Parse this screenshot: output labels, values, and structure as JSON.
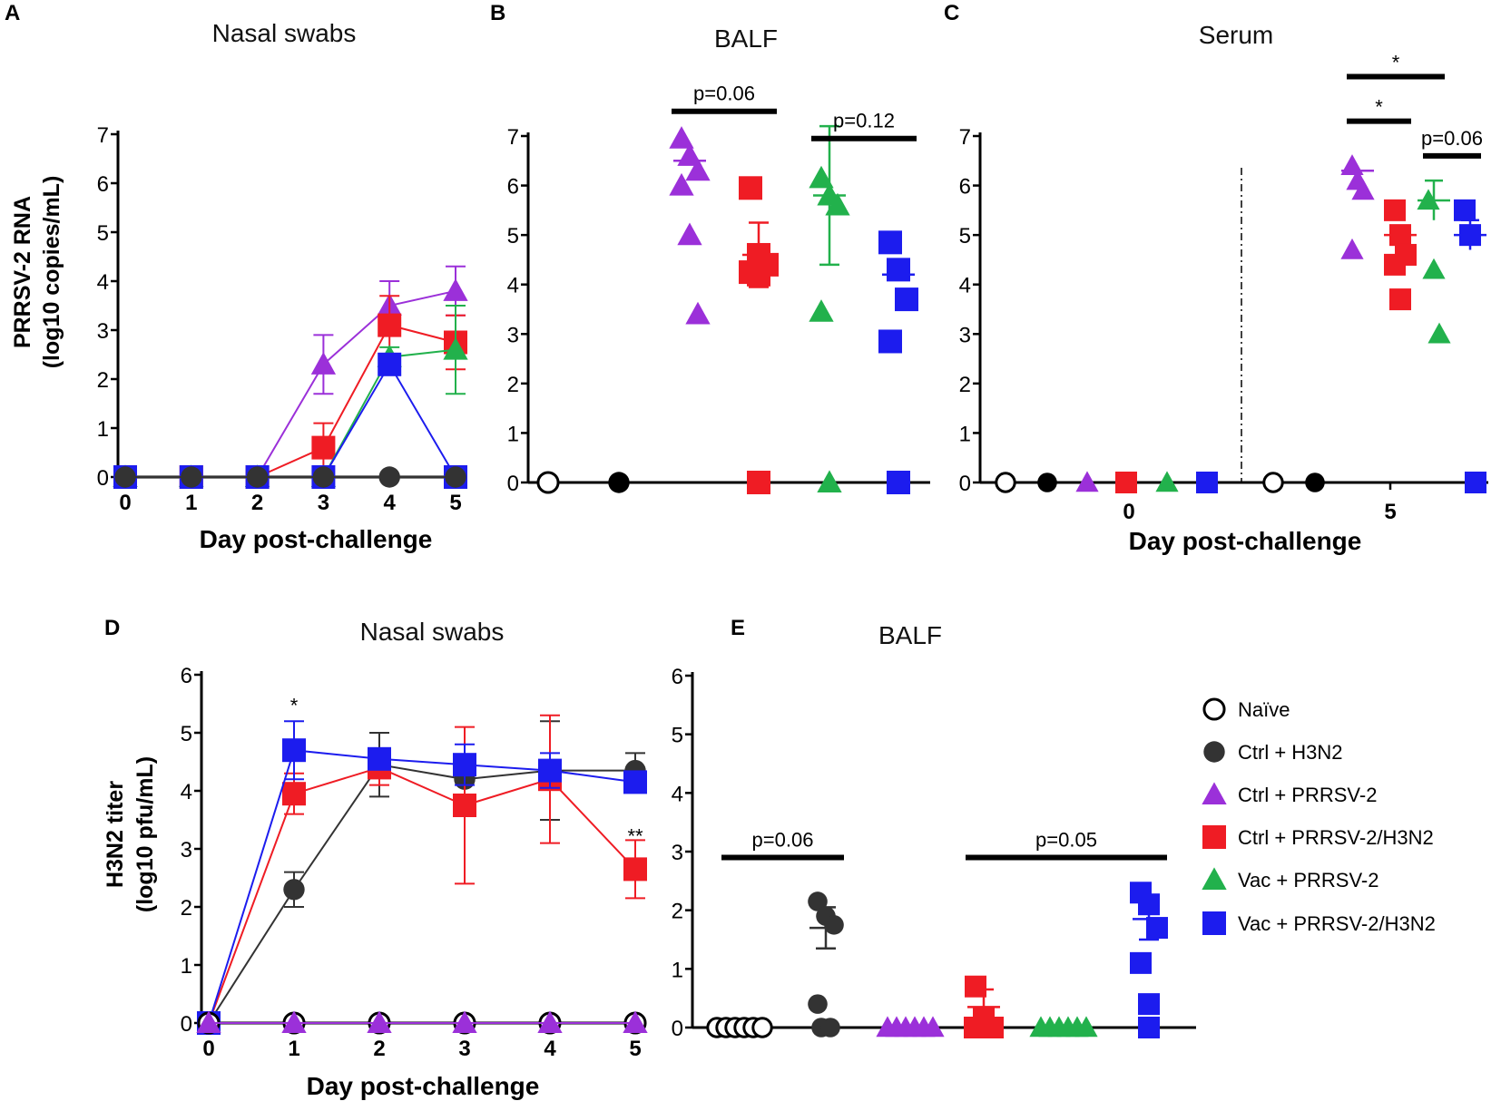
{
  "colors": {
    "naive": "#000000",
    "ctrl_h3n2": "#333333",
    "ctrl_prrsv": "#9b30d9",
    "ctrl_prrsv_h3n2": "#ef1c24",
    "vac_prrsv": "#22b14c",
    "vac_prrsv_h3n2": "#1c1cee"
  },
  "legend": [
    {
      "label": "Naïve",
      "marker": "circle-open",
      "color": "#000000"
    },
    {
      "label": "Ctrl + H3N2",
      "marker": "circle",
      "color": "#333333"
    },
    {
      "label": "Ctrl + PRRSV-2",
      "marker": "triangle",
      "color": "#9b30d9"
    },
    {
      "label": "Ctrl + PRRSV-2/H3N2",
      "marker": "square",
      "color": "#ef1c24"
    },
    {
      "label": "Vac + PRRSV-2",
      "marker": "triangle",
      "color": "#22b14c"
    },
    {
      "label": "Vac + PRRSV-2/H3N2",
      "marker": "square",
      "color": "#1c1cee"
    }
  ],
  "chart_data": [
    {
      "panel": "A",
      "type": "line",
      "title": "Nasal swabs",
      "ylabel": [
        "PRRSV-2 RNA",
        "(log10 copies/mL)"
      ],
      "xlabel": "Day post-challenge",
      "ylim": [
        0,
        7
      ],
      "yticks": [
        "0",
        "1",
        "2",
        "3",
        "4",
        "5",
        "6",
        "7"
      ],
      "x": [
        0,
        1,
        2,
        3,
        4,
        5
      ],
      "xticks": [
        "0",
        "1",
        "2",
        "3",
        "4",
        "5"
      ],
      "series": [
        {
          "name": "Ctrl + PRRSV-2",
          "marker": "triangle",
          "color": "#9b30d9",
          "values": [
            0,
            0,
            0,
            2.3,
            3.5,
            3.8
          ],
          "err": [
            0,
            0,
            0,
            0.6,
            0.5,
            0.5
          ]
        },
        {
          "name": "Ctrl + PRRSV-2/H3N2",
          "marker": "square",
          "color": "#ef1c24",
          "values": [
            0,
            0,
            0,
            0.6,
            3.1,
            2.75
          ],
          "err": [
            0,
            0,
            0,
            0.5,
            0.6,
            0.55
          ]
        },
        {
          "name": "Vac + PRRSV-2",
          "marker": "triangle",
          "color": "#22b14c",
          "values": [
            0,
            0,
            0,
            0,
            2.45,
            2.6
          ],
          "err": [
            0,
            0,
            0,
            0,
            0.2,
            0.9
          ]
        },
        {
          "name": "Vac + PRRSV-2/H3N2",
          "marker": "square",
          "color": "#1c1cee",
          "values": [
            0,
            0,
            0,
            0,
            2.3,
            0
          ],
          "err": [
            0,
            0,
            0,
            0,
            0.2,
            0
          ]
        },
        {
          "name": "Ctrl + H3N2",
          "marker": "circle",
          "color": "#333333",
          "values": [
            0,
            0,
            0,
            0,
            0,
            0
          ],
          "err": [
            0,
            0,
            0,
            0,
            0,
            0
          ]
        }
      ]
    },
    {
      "panel": "B",
      "type": "scatter",
      "title": "BALF",
      "ylim": [
        0,
        7
      ],
      "yticks": [
        "0",
        "1",
        "2",
        "3",
        "4",
        "5",
        "6",
        "7"
      ],
      "groups": [
        {
          "name": "Naïve",
          "marker": "circle-open",
          "color": "#000000",
          "points": [
            0
          ],
          "mean": null,
          "sem": null
        },
        {
          "name": "Ctrl + H3N2",
          "marker": "circle",
          "color": "#000000",
          "points": [
            0
          ],
          "mean": null,
          "sem": null
        },
        {
          "name": "Ctrl + PRRSV-2",
          "marker": "triangle",
          "color": "#9b30d9",
          "points": [
            6.95,
            6.6,
            6.3,
            6.0,
            5.0,
            3.4
          ],
          "mean": 6.5,
          "sem": null
        },
        {
          "name": "Ctrl + PRRSV-2/H3N2",
          "marker": "square",
          "color": "#ef1c24",
          "points": [
            5.95,
            4.6,
            4.4,
            4.25,
            4.2,
            0
          ],
          "mean": 4.6,
          "sem": 0.65
        },
        {
          "name": "Vac + PRRSV-2",
          "marker": "triangle",
          "color": "#22b14c",
          "points": [
            6.15,
            5.8,
            5.6,
            3.45,
            0
          ],
          "mean": 5.8,
          "sem": 1.4
        },
        {
          "name": "Vac + PRRSV-2/H3N2",
          "marker": "square",
          "color": "#1c1cee",
          "points": [
            4.85,
            4.3,
            3.7,
            2.85,
            0
          ],
          "mean": 4.2,
          "sem": null
        }
      ],
      "brackets": [
        {
          "label": "p=0.06",
          "from": 2,
          "to": 3,
          "y": 7.5
        },
        {
          "label": "p=0.12",
          "from": 4,
          "to": 5,
          "y": 6.95
        }
      ]
    },
    {
      "panel": "C",
      "type": "scatter",
      "title": "Serum",
      "xlabel": "Day post-challenge",
      "ylim": [
        0,
        7
      ],
      "yticks": [
        "0",
        "1",
        "2",
        "3",
        "4",
        "5",
        "6",
        "7"
      ],
      "xgroups": [
        "0",
        "5"
      ],
      "day0": [
        {
          "name": "Naïve",
          "marker": "circle-open",
          "color": "#000000",
          "points": [
            0
          ]
        },
        {
          "name": "Ctrl + H3N2",
          "marker": "circle",
          "color": "#000000",
          "points": [
            0
          ]
        },
        {
          "name": "Ctrl + PRRSV-2",
          "marker": "triangle",
          "color": "#9b30d9",
          "points": [
            0
          ]
        },
        {
          "name": "Ctrl + PRRSV-2/H3N2",
          "marker": "square",
          "color": "#ef1c24",
          "points": [
            0
          ]
        },
        {
          "name": "Vac + PRRSV-2",
          "marker": "triangle",
          "color": "#22b14c",
          "points": [
            0
          ]
        },
        {
          "name": "Vac + PRRSV-2/H3N2",
          "marker": "square",
          "color": "#1c1cee",
          "points": [
            0
          ]
        }
      ],
      "day5": [
        {
          "name": "Naïve",
          "marker": "circle-open",
          "color": "#000000",
          "points": [
            0
          ],
          "mean": null,
          "sem": null
        },
        {
          "name": "Ctrl + H3N2",
          "marker": "circle",
          "color": "#000000",
          "points": [
            0
          ],
          "mean": null,
          "sem": null
        },
        {
          "name": "Ctrl + PRRSV-2",
          "marker": "triangle",
          "color": "#9b30d9",
          "points": [
            6.4,
            6.1,
            5.9,
            4.7
          ],
          "mean": 6.3,
          "sem": null
        },
        {
          "name": "Ctrl + PRRSV-2/H3N2",
          "marker": "square",
          "color": "#ef1c24",
          "points": [
            5.5,
            5.0,
            4.6,
            4.4,
            3.7
          ],
          "mean": 5.0,
          "sem": null
        },
        {
          "name": "Vac + PRRSV-2",
          "marker": "triangle",
          "color": "#22b14c",
          "points": [
            5.7,
            4.3,
            3.0
          ],
          "mean": 5.7,
          "sem": 0.4
        },
        {
          "name": "Vac + PRRSV-2/H3N2",
          "marker": "square",
          "color": "#1c1cee",
          "points": [
            5.5,
            5.0,
            0
          ],
          "mean": 5.0,
          "sem": 0.3
        }
      ],
      "brackets": [
        {
          "label": "*",
          "from": "ctrl_prrsv",
          "to": "ctrl_prrsv_h3n2",
          "y": 7.3
        },
        {
          "label": "*",
          "from": "ctrl_prrsv",
          "to": "vac_prrsv",
          "y": 8.2
        },
        {
          "label": "p=0.06",
          "from": "vac_prrsv",
          "to": "vac_prrsv_h3n2",
          "y": 6.6
        }
      ]
    },
    {
      "panel": "D",
      "type": "line",
      "title": "Nasal swabs",
      "ylabel": [
        "H3N2 titer",
        "(log10 pfu/mL)"
      ],
      "xlabel": "Day post-challenge",
      "ylim": [
        0,
        6
      ],
      "yticks": [
        "0",
        "1",
        "2",
        "3",
        "4",
        "5",
        "6"
      ],
      "x": [
        0,
        1,
        2,
        3,
        4,
        5
      ],
      "xticks": [
        "0",
        "1",
        "2",
        "3",
        "4",
        "5"
      ],
      "series": [
        {
          "name": "Ctrl + H3N2",
          "marker": "circle",
          "color": "#333333",
          "values": [
            0,
            2.3,
            4.45,
            4.2,
            4.35,
            4.35
          ],
          "err": [
            0,
            0.3,
            0.55,
            0.4,
            0.85,
            0.3
          ]
        },
        {
          "name": "Ctrl + PRRSV-2/H3N2",
          "marker": "square",
          "color": "#ef1c24",
          "values": [
            0,
            3.95,
            4.4,
            3.75,
            4.2,
            2.65
          ],
          "err": [
            0,
            0.35,
            0.3,
            1.35,
            1.1,
            0.5
          ]
        },
        {
          "name": "Vac + PRRSV-2/H3N2",
          "marker": "square",
          "color": "#1c1cee",
          "values": [
            0,
            4.7,
            4.55,
            4.45,
            4.35,
            4.15
          ],
          "err": [
            0,
            0.5,
            0.15,
            0.35,
            0.3,
            0.1
          ]
        },
        {
          "name": "Naïve",
          "marker": "circle-open",
          "color": "#000000",
          "values": [
            0,
            0,
            0,
            0,
            0,
            0
          ],
          "err": [
            0,
            0,
            0,
            0,
            0,
            0
          ]
        },
        {
          "name": "Ctrl + PRRSV-2",
          "marker": "triangle",
          "color": "#9b30d9",
          "values": [
            0,
            0,
            0,
            0,
            0,
            0
          ],
          "err": [
            0,
            0,
            0,
            0,
            0,
            0
          ]
        }
      ],
      "annotations": [
        {
          "text": "*",
          "x": 1,
          "y": 5.35
        },
        {
          "text": "**",
          "x": 5,
          "y": 3.1
        }
      ]
    },
    {
      "panel": "E",
      "type": "scatter",
      "title": "BALF",
      "ylim": [
        0,
        6
      ],
      "yticks": [
        "0",
        "1",
        "2",
        "3",
        "4",
        "5",
        "6"
      ],
      "groups": [
        {
          "name": "Naïve",
          "marker": "circle-open",
          "color": "#000000",
          "points": [
            0,
            0,
            0,
            0,
            0,
            0
          ],
          "mean": null,
          "sem": null
        },
        {
          "name": "Ctrl + H3N2",
          "marker": "circle",
          "color": "#333333",
          "points": [
            2.15,
            1.9,
            1.75,
            0.4,
            0,
            0
          ],
          "mean": 1.7,
          "sem": 0.35
        },
        {
          "name": "Ctrl + PRRSV-2",
          "marker": "triangle",
          "color": "#9b30d9",
          "points": [
            0,
            0,
            0,
            0,
            0,
            0
          ],
          "mean": null,
          "sem": null
        },
        {
          "name": "Ctrl + PRRSV-2/H3N2",
          "marker": "square",
          "color": "#ef1c24",
          "points": [
            0.7,
            0.15,
            0,
            0,
            0
          ],
          "mean": 0.35,
          "sem": 0.3
        },
        {
          "name": "Vac + PRRSV-2",
          "marker": "triangle",
          "color": "#22b14c",
          "points": [
            0,
            0,
            0,
            0,
            0,
            0
          ],
          "mean": null,
          "sem": null
        },
        {
          "name": "Vac + PRRSV-2/H3N2",
          "marker": "square",
          "color": "#1c1cee",
          "points": [
            2.3,
            2.1,
            1.7,
            1.1,
            0.4,
            0
          ],
          "mean": 1.85,
          "sem": 0.35
        }
      ],
      "brackets": [
        {
          "label": "p=0.06",
          "from": 0,
          "to": 1,
          "y": 2.9
        },
        {
          "label": "p=0.05",
          "from": 3,
          "to": 5,
          "y": 2.9
        }
      ]
    }
  ]
}
